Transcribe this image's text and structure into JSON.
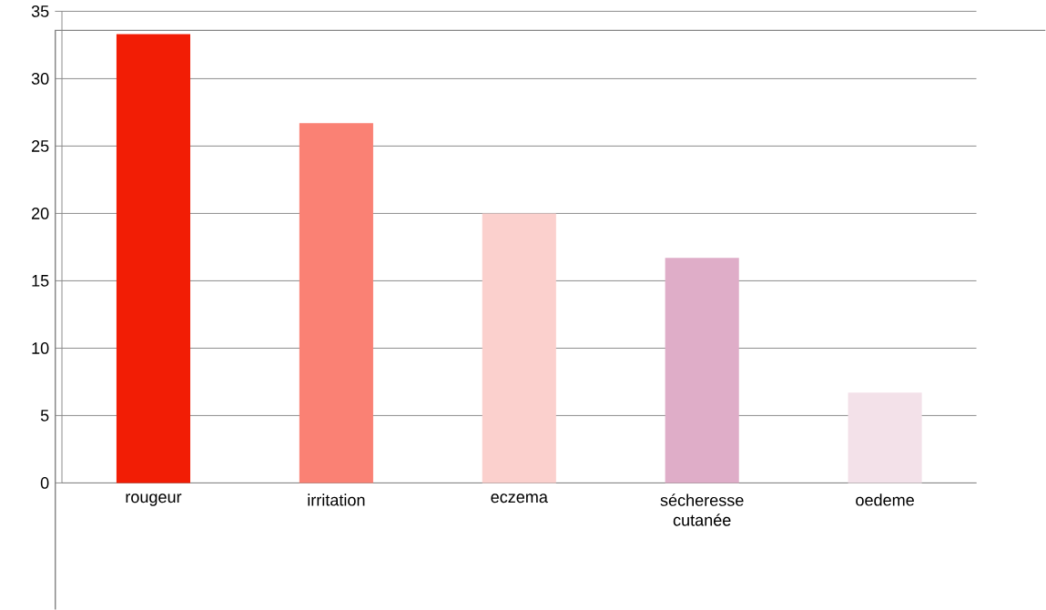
{
  "chart_data": {
    "type": "bar",
    "categories": [
      "rougeur",
      "irritation",
      "eczema",
      "sécheresse cutanée",
      "oedeme"
    ],
    "values": [
      33.3,
      26.7,
      20,
      16.7,
      6.7
    ],
    "colors": [
      "#f21d05",
      "#fa8174",
      "#fbd0cd",
      "#dfadc8",
      "#f3e1e9"
    ],
    "ylim": [
      0,
      35
    ],
    "yticks": [
      0,
      5,
      10,
      15,
      20,
      25,
      30,
      35
    ],
    "grid": "y"
  }
}
